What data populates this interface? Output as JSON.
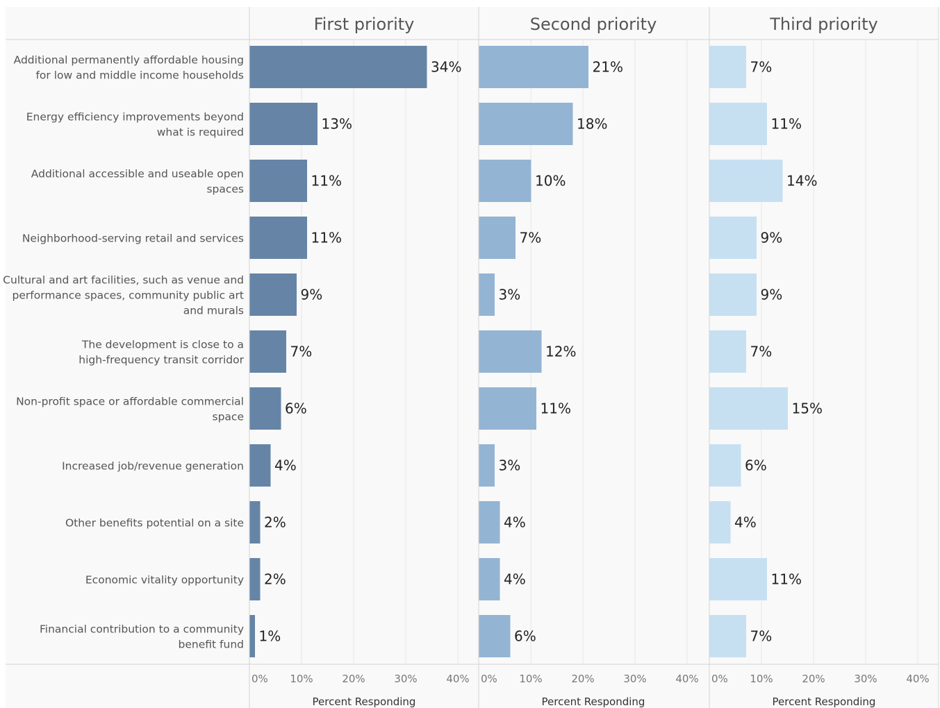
{
  "chart_data": {
    "type": "bar",
    "orientation": "horizontal",
    "categories": [
      [
        "Additional permanently affordable housing",
        "for low and middle income households"
      ],
      [
        "Energy efficiency improvements beyond",
        "what is required"
      ],
      [
        "Additional accessible and useable open",
        "spaces"
      ],
      [
        "Neighborhood-serving retail and services"
      ],
      [
        "Cultural and art facilities, such as venue and",
        "performance spaces, community public art",
        "and murals"
      ],
      [
        "The development is close to a",
        "high-frequency transit corridor"
      ],
      [
        "Non-profit space or affordable commercial",
        "space"
      ],
      [
        "Increased job/revenue generation"
      ],
      [
        "Other benefits potential on a site"
      ],
      [
        "Economic vitality opportunity"
      ],
      [
        "Financial contribution to a community",
        "benefit fund"
      ]
    ],
    "series": [
      {
        "name": "First priority",
        "color": "#6685a6",
        "values": [
          34,
          13,
          11,
          11,
          9,
          7,
          6,
          4,
          2,
          2,
          1
        ]
      },
      {
        "name": "Second priority",
        "color": "#94b4d3",
        "values": [
          21,
          18,
          10,
          7,
          3,
          12,
          11,
          3,
          4,
          4,
          6
        ]
      },
      {
        "name": "Third priority",
        "color": "#c6e0f2",
        "values": [
          7,
          11,
          14,
          9,
          9,
          7,
          15,
          6,
          4,
          11,
          7
        ]
      }
    ],
    "value_suffix": "%",
    "xlim": [
      0,
      44
    ],
    "xticks": [
      0,
      10,
      20,
      30,
      40
    ],
    "xtick_labels": [
      "0%",
      "10%",
      "20%",
      "30%",
      "40%"
    ],
    "xlabel": "Percent Responding",
    "grid": true
  }
}
